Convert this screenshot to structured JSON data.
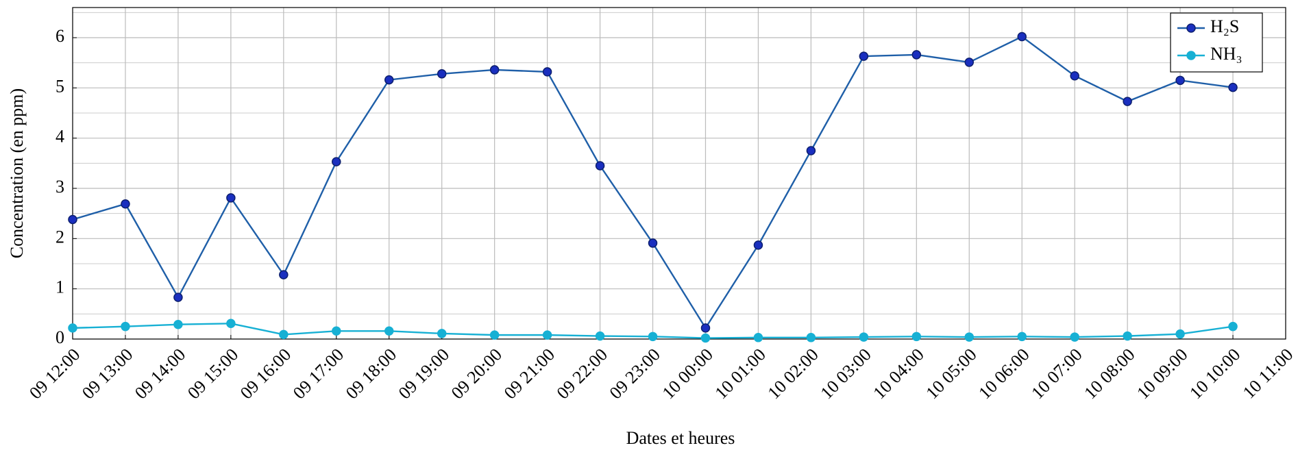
{
  "chart_data": {
    "type": "line",
    "xlabel": "Dates et heures",
    "ylabel": "Concentration (en ppm)",
    "categories": [
      "09 12:00",
      "09 13:00",
      "09 14:00",
      "09 15:00",
      "09 16:00",
      "09 17:00",
      "09 18:00",
      "09 19:00",
      "09 20:00",
      "09 21:00",
      "09 22:00",
      "09 23:00",
      "10 00:00",
      "10 01:00",
      "10 02:00",
      "10 03:00",
      "10 04:00",
      "10 05:00",
      "10 06:00",
      "10 07:00",
      "10 08:00",
      "10 09:00",
      "10 10:00",
      "10 11:00"
    ],
    "series": [
      {
        "name": "H₂S",
        "color": "#1f5fa8",
        "marker_color": "#1a2fbf",
        "values": [
          2.38,
          2.69,
          0.83,
          2.81,
          1.28,
          3.53,
          5.16,
          5.28,
          5.36,
          5.32,
          3.45,
          1.91,
          0.22,
          1.87,
          3.75,
          5.63,
          5.66,
          5.51,
          6.02,
          5.24,
          4.73,
          5.15,
          5.01,
          null
        ]
      },
      {
        "name": "NH₃",
        "color": "#17b0d4",
        "marker_color": "#17b0d4",
        "values": [
          0.22,
          0.25,
          0.29,
          0.31,
          0.09,
          0.16,
          0.16,
          0.11,
          0.08,
          0.08,
          0.06,
          0.05,
          0.02,
          0.03,
          0.03,
          0.04,
          0.05,
          0.04,
          0.05,
          0.04,
          0.06,
          0.1,
          0.25,
          null
        ]
      }
    ],
    "ylim": [
      0,
      6.6
    ],
    "yticks": [
      0,
      1,
      2,
      3,
      4,
      5,
      6
    ],
    "yminorticks": [
      0.5,
      1.5,
      2.5,
      3.5,
      4.5,
      5.5,
      6.5
    ],
    "grid": true,
    "legend": "top-right"
  }
}
